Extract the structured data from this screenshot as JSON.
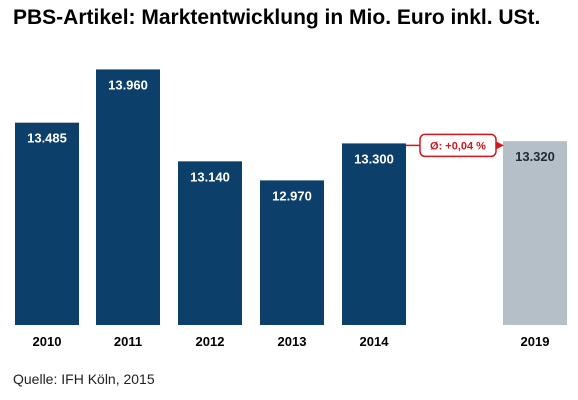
{
  "chart_data": {
    "type": "bar",
    "title": "PBS-Artikel: Marktentwicklung in Mio. Euro inkl. USt.",
    "categories": [
      "2010",
      "2011",
      "2012",
      "2013",
      "2014",
      "2019"
    ],
    "values": [
      13485,
      13960,
      13140,
      12970,
      13300,
      13320
    ],
    "value_labels": [
      "13.485",
      "13.960",
      "13.140",
      "12.970",
      "13.300",
      "13.320"
    ],
    "forecast_categories": [
      "2019"
    ],
    "annotation": {
      "text": "Ø: +0,04 %",
      "from": "2014",
      "to": "2019"
    },
    "xlabel": "",
    "ylabel": "",
    "ylim": [
      11680,
      14160
    ],
    "y_axis_shown": false,
    "grid": false,
    "colors": {
      "bar": "#0d3f6b",
      "forecast_bar": "#b4bfc8",
      "annotation": "#d0181e",
      "value_label": "#ffffff"
    }
  },
  "source": "Quelle: IFH Köln, 2015"
}
